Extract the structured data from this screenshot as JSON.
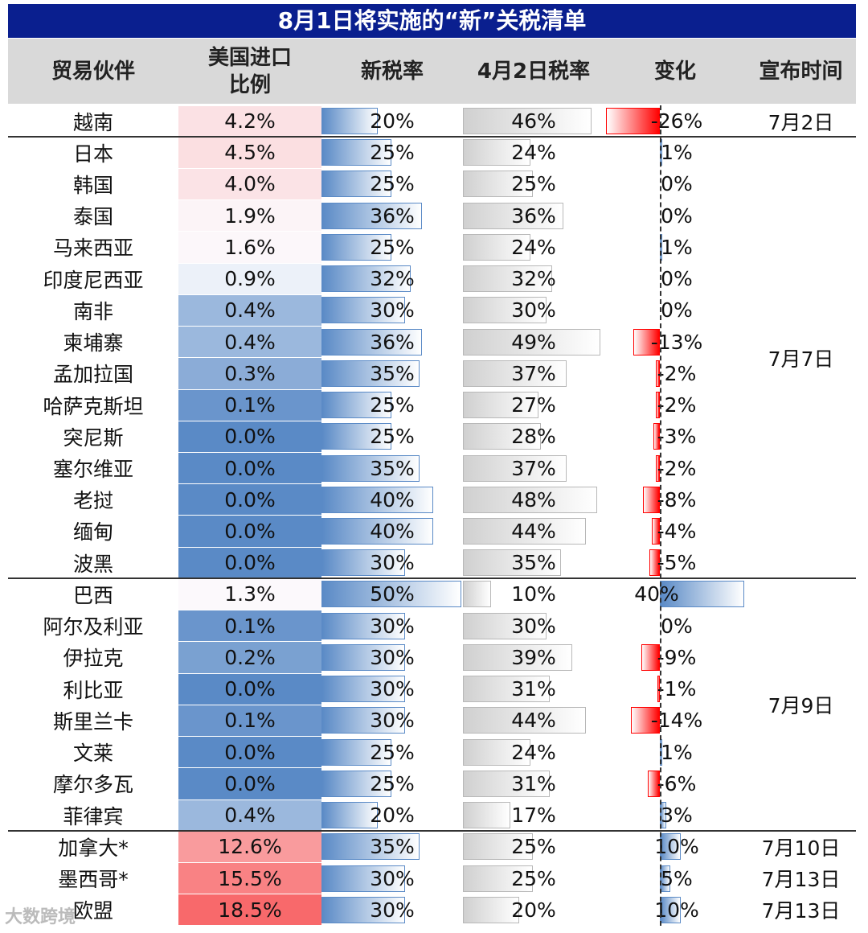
{
  "chart_data": {
    "type": "table",
    "title": "8月1日将实施的“新”关税清单",
    "columns": [
      "贸易伙伴",
      "美国进口比例",
      "新税率",
      "4月2日税率",
      "变化",
      "宣布时间"
    ],
    "rows": [
      {
        "country": "越南",
        "share": "4.2%",
        "share_val": 4.2,
        "new": "20%",
        "new_val": 20,
        "apr": "46%",
        "apr_val": 46,
        "chg": "-26%",
        "chg_val": -26
      },
      {
        "country": "日本",
        "share": "4.5%",
        "share_val": 4.5,
        "new": "25%",
        "new_val": 25,
        "apr": "24%",
        "apr_val": 24,
        "chg": "1%",
        "chg_val": 1
      },
      {
        "country": "韩国",
        "share": "4.0%",
        "share_val": 4.0,
        "new": "25%",
        "new_val": 25,
        "apr": "25%",
        "apr_val": 25,
        "chg": "0%",
        "chg_val": 0
      },
      {
        "country": "泰国",
        "share": "1.9%",
        "share_val": 1.9,
        "new": "36%",
        "new_val": 36,
        "apr": "36%",
        "apr_val": 36,
        "chg": "0%",
        "chg_val": 0
      },
      {
        "country": "马来西亚",
        "share": "1.6%",
        "share_val": 1.6,
        "new": "25%",
        "new_val": 25,
        "apr": "24%",
        "apr_val": 24,
        "chg": "1%",
        "chg_val": 1
      },
      {
        "country": "印度尼西亚",
        "share": "0.9%",
        "share_val": 0.9,
        "new": "32%",
        "new_val": 32,
        "apr": "32%",
        "apr_val": 32,
        "chg": "0%",
        "chg_val": 0
      },
      {
        "country": "南非",
        "share": "0.4%",
        "share_val": 0.4,
        "new": "30%",
        "new_val": 30,
        "apr": "30%",
        "apr_val": 30,
        "chg": "0%",
        "chg_val": 0
      },
      {
        "country": "柬埔寨",
        "share": "0.4%",
        "share_val": 0.4,
        "new": "36%",
        "new_val": 36,
        "apr": "49%",
        "apr_val": 49,
        "chg": "-13%",
        "chg_val": -13
      },
      {
        "country": "孟加拉国",
        "share": "0.3%",
        "share_val": 0.3,
        "new": "35%",
        "new_val": 35,
        "apr": "37%",
        "apr_val": 37,
        "chg": "-2%",
        "chg_val": -2
      },
      {
        "country": "哈萨克斯坦",
        "share": "0.1%",
        "share_val": 0.1,
        "new": "25%",
        "new_val": 25,
        "apr": "27%",
        "apr_val": 27,
        "chg": "-2%",
        "chg_val": -2
      },
      {
        "country": "突尼斯",
        "share": "0.0%",
        "share_val": 0.0,
        "new": "25%",
        "new_val": 25,
        "apr": "28%",
        "apr_val": 28,
        "chg": "-3%",
        "chg_val": -3
      },
      {
        "country": "塞尔维亚",
        "share": "0.0%",
        "share_val": 0.0,
        "new": "35%",
        "new_val": 35,
        "apr": "37%",
        "apr_val": 37,
        "chg": "-2%",
        "chg_val": -2
      },
      {
        "country": "老挝",
        "share": "0.0%",
        "share_val": 0.0,
        "new": "40%",
        "new_val": 40,
        "apr": "48%",
        "apr_val": 48,
        "chg": "-8%",
        "chg_val": -8
      },
      {
        "country": "缅甸",
        "share": "0.0%",
        "share_val": 0.0,
        "new": "40%",
        "new_val": 40,
        "apr": "44%",
        "apr_val": 44,
        "chg": "-4%",
        "chg_val": -4
      },
      {
        "country": "波黑",
        "share": "0.0%",
        "share_val": 0.0,
        "new": "30%",
        "new_val": 30,
        "apr": "35%",
        "apr_val": 35,
        "chg": "-5%",
        "chg_val": -5
      },
      {
        "country": "巴西",
        "share": "1.3%",
        "share_val": 1.3,
        "new": "50%",
        "new_val": 50,
        "apr": "10%",
        "apr_val": 10,
        "chg": "40%",
        "chg_val": 40
      },
      {
        "country": "阿尔及利亚",
        "share": "0.1%",
        "share_val": 0.1,
        "new": "30%",
        "new_val": 30,
        "apr": "30%",
        "apr_val": 30,
        "chg": "0%",
        "chg_val": 0
      },
      {
        "country": "伊拉克",
        "share": "0.2%",
        "share_val": 0.2,
        "new": "30%",
        "new_val": 30,
        "apr": "39%",
        "apr_val": 39,
        "chg": "-9%",
        "chg_val": -9
      },
      {
        "country": "利比亚",
        "share": "0.0%",
        "share_val": 0.0,
        "new": "30%",
        "new_val": 30,
        "apr": "31%",
        "apr_val": 31,
        "chg": "-1%",
        "chg_val": -1
      },
      {
        "country": "斯里兰卡",
        "share": "0.1%",
        "share_val": 0.1,
        "new": "30%",
        "new_val": 30,
        "apr": "44%",
        "apr_val": 44,
        "chg": "-14%",
        "chg_val": -14
      },
      {
        "country": "文莱",
        "share": "0.0%",
        "share_val": 0.0,
        "new": "25%",
        "new_val": 25,
        "apr": "24%",
        "apr_val": 24,
        "chg": "1%",
        "chg_val": 1
      },
      {
        "country": "摩尔多瓦",
        "share": "0.0%",
        "share_val": 0.0,
        "new": "25%",
        "new_val": 25,
        "apr": "31%",
        "apr_val": 31,
        "chg": "-6%",
        "chg_val": -6
      },
      {
        "country": "菲律宾",
        "share": "0.4%",
        "share_val": 0.4,
        "new": "20%",
        "new_val": 20,
        "apr": "17%",
        "apr_val": 17,
        "chg": "3%",
        "chg_val": 3
      },
      {
        "country": "加拿大*",
        "share": "12.6%",
        "share_val": 12.6,
        "new": "35%",
        "new_val": 35,
        "apr": "25%",
        "apr_val": 25,
        "chg": "10%",
        "chg_val": 10
      },
      {
        "country": "墨西哥*",
        "share": "15.5%",
        "share_val": 15.5,
        "new": "30%",
        "new_val": 30,
        "apr": "25%",
        "apr_val": 25,
        "chg": "5%",
        "chg_val": 5
      },
      {
        "country": "欧盟",
        "share": "18.5%",
        "share_val": 18.5,
        "new": "30%",
        "new_val": 30,
        "apr": "20%",
        "apr_val": 20,
        "chg": "10%",
        "chg_val": 10
      }
    ],
    "groups": [
      {
        "date": "7月2日",
        "start": 0,
        "end": 0
      },
      {
        "date": "7月7日",
        "start": 1,
        "end": 14
      },
      {
        "date": "7月9日",
        "start": 15,
        "end": 22
      },
      {
        "date": "7月10日",
        "start": 23,
        "end": 23
      },
      {
        "date": "7月13日",
        "start": 24,
        "end": 24
      },
      {
        "date": "7月13日",
        "start": 25,
        "end": 25
      }
    ],
    "separators_after_rows": [
      0,
      14,
      22
    ],
    "rate_axis_max": 50,
    "change_axis_range": [
      -26,
      40
    ]
  },
  "watermark": "大数跨境",
  "colors": {
    "banner": "#0a1f8f",
    "header_bg": "#d9d9d9",
    "share_high": "#f8696b",
    "share_low": "#5a8ac6",
    "share_mid": "#fcfcff",
    "rate_bar": "#5a8ac6",
    "apr_bar": "#d0d0d0",
    "neg_bar": "#ff0000"
  }
}
